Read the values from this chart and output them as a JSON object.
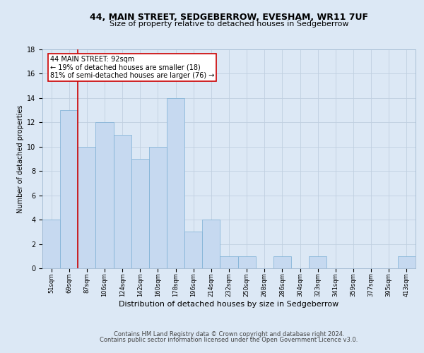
{
  "title1": "44, MAIN STREET, SEDGEBERROW, EVESHAM, WR11 7UF",
  "title2": "Size of property relative to detached houses in Sedgeberrow",
  "xlabel": "Distribution of detached houses by size in Sedgeberrow",
  "ylabel": "Number of detached properties",
  "footer1": "Contains HM Land Registry data © Crown copyright and database right 2024.",
  "footer2": "Contains public sector information licensed under the Open Government Licence v3.0.",
  "categories": [
    "51sqm",
    "69sqm",
    "87sqm",
    "106sqm",
    "124sqm",
    "142sqm",
    "160sqm",
    "178sqm",
    "196sqm",
    "214sqm",
    "232sqm",
    "250sqm",
    "268sqm",
    "286sqm",
    "304sqm",
    "323sqm",
    "341sqm",
    "359sqm",
    "377sqm",
    "395sqm",
    "413sqm"
  ],
  "values": [
    4,
    13,
    10,
    12,
    11,
    9,
    10,
    14,
    3,
    4,
    1,
    1,
    0,
    1,
    0,
    1,
    0,
    0,
    0,
    0,
    1
  ],
  "bar_color": "#c6d9f0",
  "bar_edge_color": "#7bafd4",
  "bar_edge_width": 0.5,
  "vline_x_index": 1.5,
  "vline_color": "#cc0000",
  "annotation_line1": "44 MAIN STREET: 92sqm",
  "annotation_line2": "← 19% of detached houses are smaller (18)",
  "annotation_line3": "81% of semi-detached houses are larger (76) →",
  "annotation_box_color": "#cc0000",
  "annotation_box_bg": "#ffffff",
  "ylim": [
    0,
    18
  ],
  "yticks": [
    0,
    2,
    4,
    6,
    8,
    10,
    12,
    14,
    16,
    18
  ],
  "grid_color": "#c0cfe0",
  "bg_color": "#dce8f5",
  "plot_bg_color": "#dce8f5",
  "title1_fontsize": 9,
  "title2_fontsize": 8,
  "xlabel_fontsize": 8,
  "ylabel_fontsize": 7,
  "xtick_fontsize": 6,
  "ytick_fontsize": 7,
  "annotation_fontsize": 7,
  "footer_fontsize": 6
}
